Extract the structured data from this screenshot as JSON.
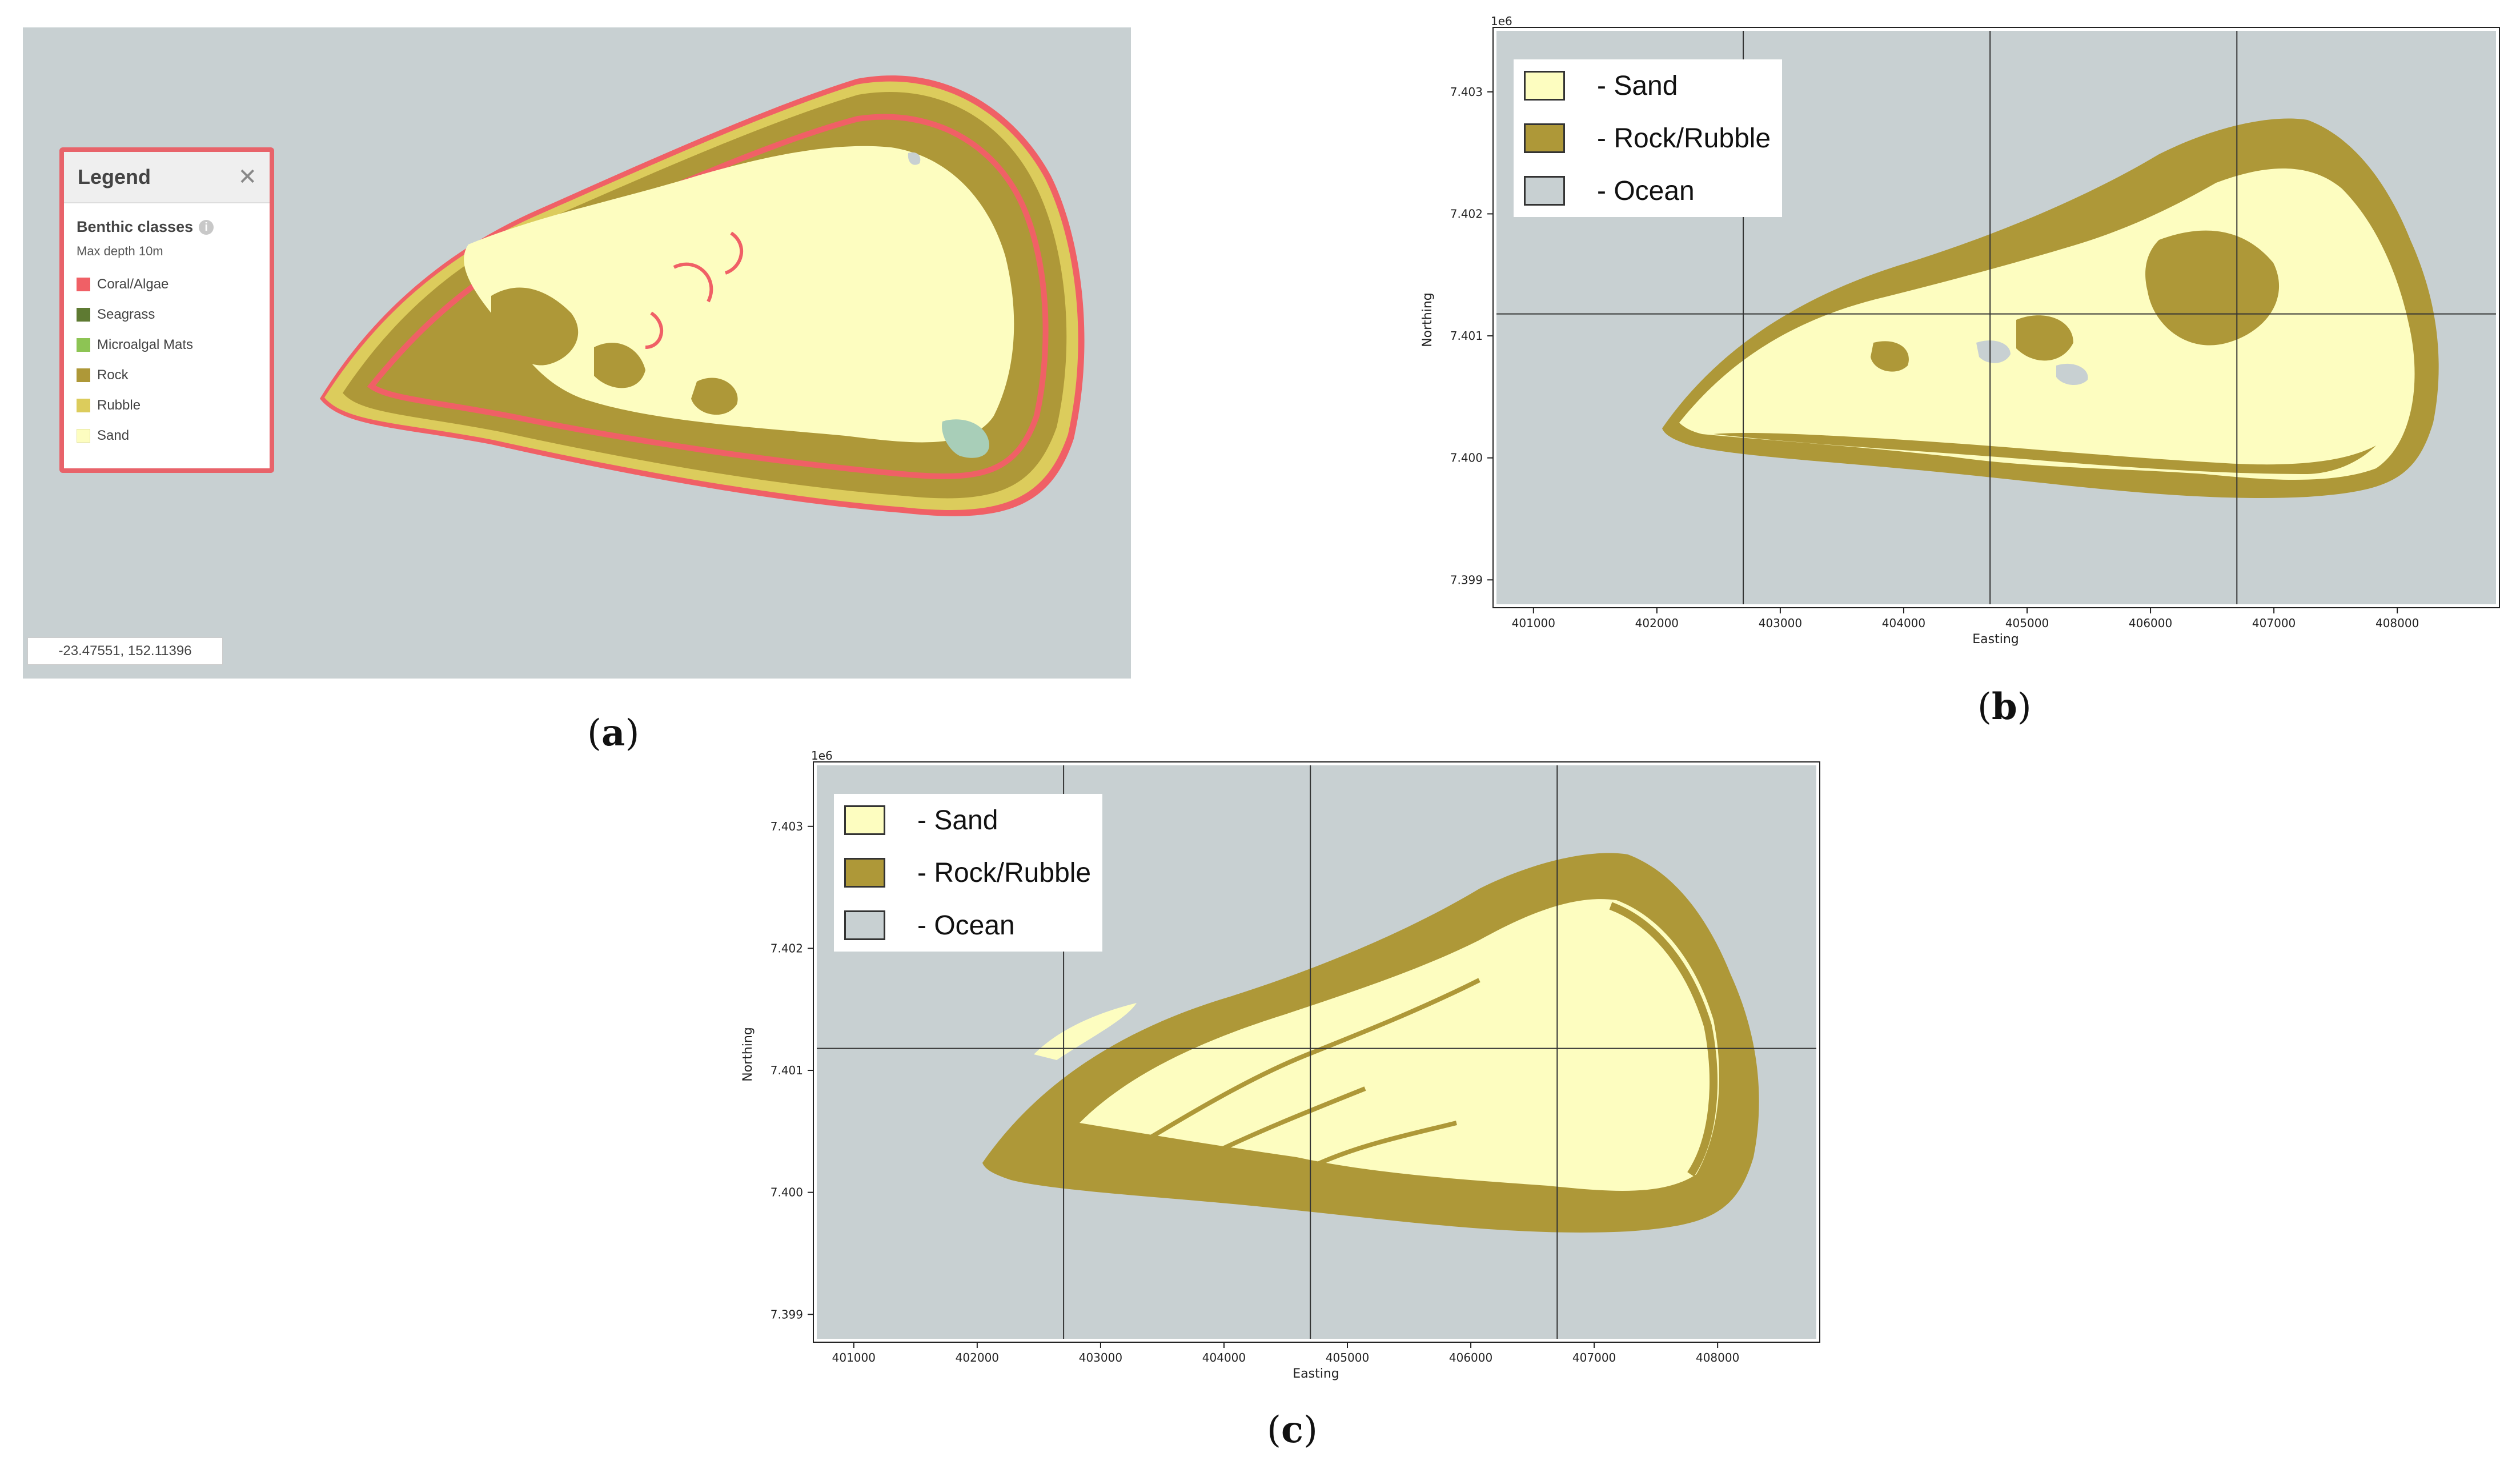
{
  "colors": {
    "ocean": "#c8d0d2",
    "sand": "#fdfdc0",
    "rock": "#ae9838",
    "coral": "#f06066",
    "seagrass": "#5e7a32",
    "microalgal": "#8dc454",
    "rubble": "#dccc5c",
    "legend_border": "#e8636a"
  },
  "panel_a": {
    "legend": {
      "title": "Legend",
      "close_icon": "close-icon",
      "section": "Benthic classes",
      "info_icon": "info-icon",
      "subtitle": "Max depth 10m",
      "items": [
        {
          "label": "Coral/Algae",
          "color": "#f06066"
        },
        {
          "label": "Seagrass",
          "color": "#5e7a32"
        },
        {
          "label": "Microalgal Mats",
          "color": "#8dc454"
        },
        {
          "label": "Rock",
          "color": "#ae9838"
        },
        {
          "label": "Rubble",
          "color": "#dccc5c"
        },
        {
          "label": "Sand",
          "color": "#fdfdc0"
        }
      ]
    },
    "coordinates": "-23.47551, 152.11396",
    "caption_label": "a"
  },
  "panel_b": {
    "caption_label": "b",
    "legend": [
      {
        "label": "- Sand",
        "color": "#fdfdc0"
      },
      {
        "label": "- Rock/Rubble",
        "color": "#ae9838"
      },
      {
        "label": "- Ocean",
        "color": "#c8d0d2"
      }
    ]
  },
  "panel_c": {
    "caption_label": "c",
    "legend": [
      {
        "label": "- Sand",
        "color": "#fdfdc0"
      },
      {
        "label": "- Rock/Rubble",
        "color": "#ae9838"
      },
      {
        "label": "- Ocean",
        "color": "#c8d0d2"
      }
    ]
  },
  "plot_axes": {
    "offset_label": "1e6",
    "xlabel": "Easting",
    "ylabel": "Northing",
    "xticks": [
      "401000",
      "402000",
      "403000",
      "404000",
      "405000",
      "406000",
      "407000",
      "408000"
    ],
    "yticks": [
      "7.403",
      "7.402",
      "7.401",
      "7.400",
      "7.399"
    ],
    "xlim": [
      400700,
      408800
    ],
    "ylim": [
      7.3988,
      7.4035
    ],
    "grid_x": [
      402700,
      404700,
      406700
    ],
    "grid_y": [
      7.40118
    ]
  }
}
